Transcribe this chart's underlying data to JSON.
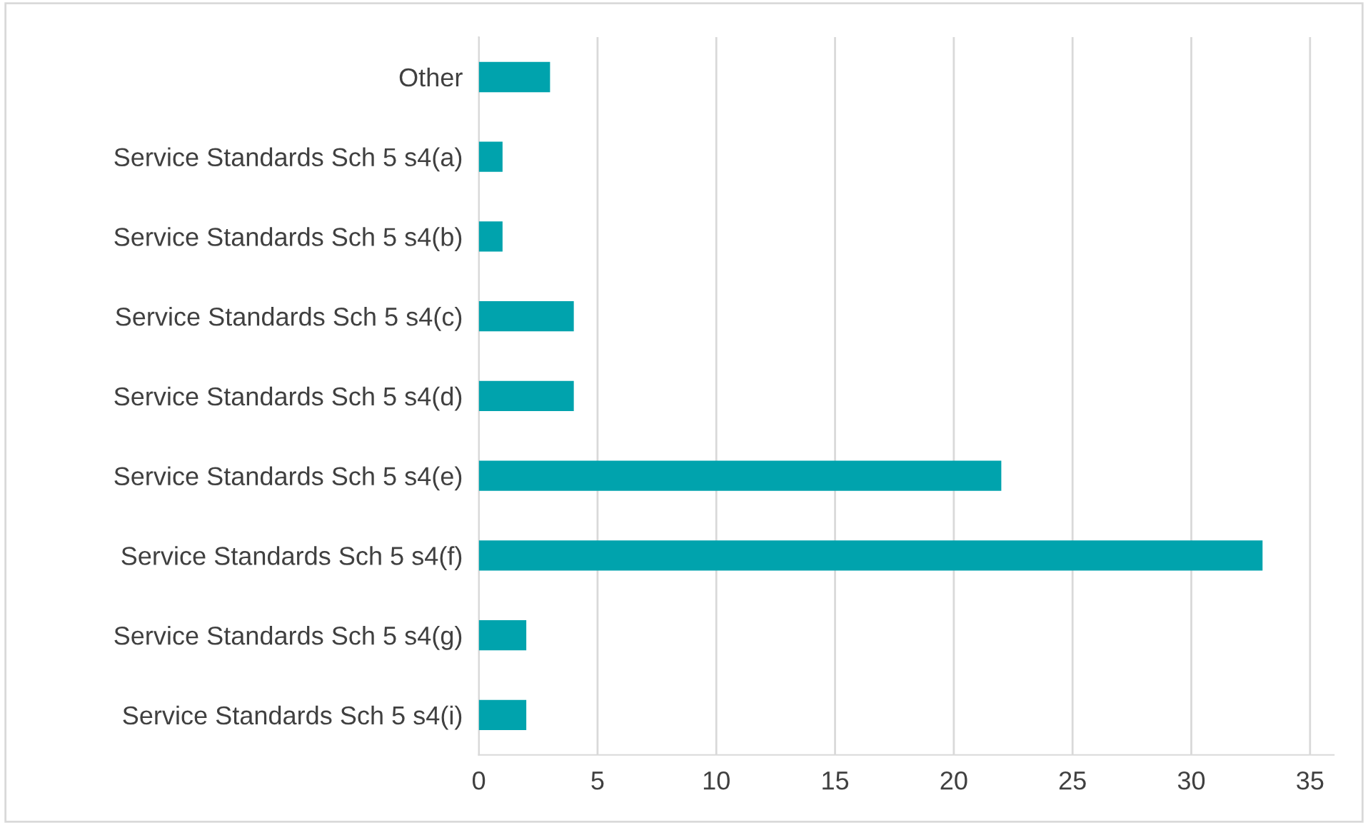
{
  "chart_data": {
    "type": "bar",
    "orientation": "horizontal",
    "categories": [
      "Other",
      "Service Standards Sch 5 s4(a)",
      "Service Standards Sch 5 s4(b)",
      "Service Standards Sch 5 s4(c)",
      "Service Standards Sch 5 s4(d)",
      "Service Standards Sch 5 s4(e)",
      "Service Standards Sch 5 s4(f)",
      "Service Standards Sch 5 s4(g)",
      "Service Standards Sch 5 s4(i)"
    ],
    "values": [
      3,
      1,
      1,
      4,
      4,
      22,
      33,
      2,
      2
    ],
    "color": "#00a3ad",
    "xlim": [
      0,
      36
    ],
    "xticks": [
      0,
      5,
      10,
      15,
      20,
      25,
      30,
      35
    ],
    "grid": "x"
  }
}
